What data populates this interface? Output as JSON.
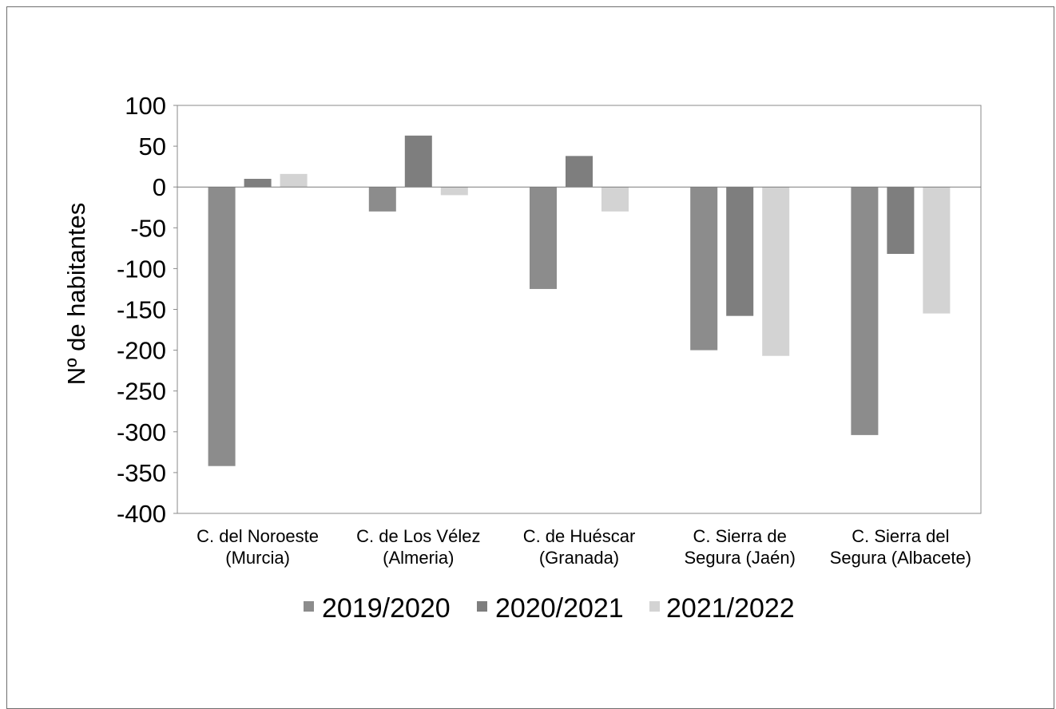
{
  "chart_data": {
    "type": "bar",
    "ylabel": "Nº de habitantes",
    "ylim": [
      -400,
      100
    ],
    "yticks": [
      100,
      50,
      0,
      -50,
      -100,
      -150,
      -200,
      -250,
      -300,
      -350,
      -400
    ],
    "categories": [
      [
        "C. del Noroeste",
        "(Murcia)"
      ],
      [
        "C. de Los Vélez",
        "(Almeria)"
      ],
      [
        "C. de Huéscar",
        "(Granada)"
      ],
      [
        "C. Sierra de",
        "Segura (Jaén)"
      ],
      [
        "C. Sierra del",
        "Segura (Albacete)"
      ]
    ],
    "series": [
      {
        "name": "2019/2020",
        "color": "#8c8c8c",
        "values": [
          -342,
          -30,
          -125,
          -200,
          -304
        ]
      },
      {
        "name": "2020/2021",
        "color": "#7e7e7e",
        "values": [
          10,
          63,
          38,
          -158,
          -82
        ]
      },
      {
        "name": "2021/2022",
        "color": "#d3d3d3",
        "values": [
          16,
          -10,
          -30,
          -207,
          -155
        ]
      }
    ],
    "legend_position": "bottom",
    "grid": false
  }
}
